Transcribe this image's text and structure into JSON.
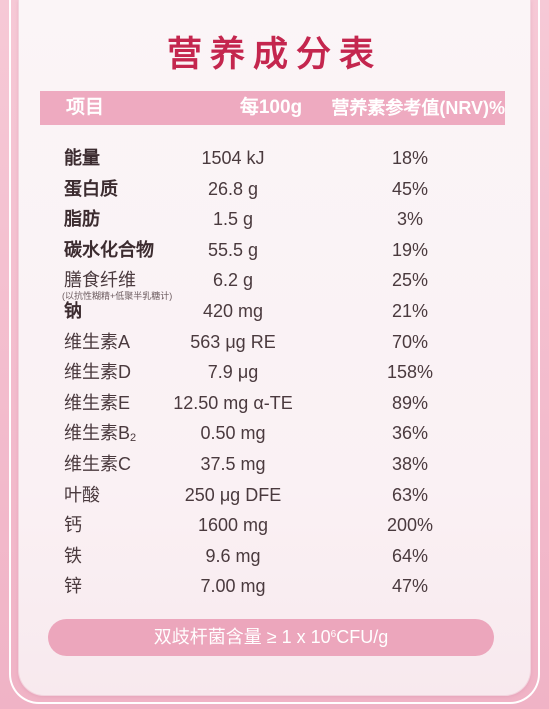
{
  "title": "营养成分表",
  "header": {
    "item": "项目",
    "per": "每100g",
    "nrv": "营养素参考值(NRV)%"
  },
  "rows": [
    {
      "name": "能量",
      "per": "1504 kJ",
      "nrv": "18%",
      "bold": true
    },
    {
      "name": "蛋白质",
      "per": "26.8 g",
      "nrv": "45%",
      "bold": true
    },
    {
      "name": "脂肪",
      "per": "1.5 g",
      "nrv": "3%",
      "bold": true
    },
    {
      "name": "碳水化合物",
      "per": "55.5 g",
      "nrv": "19%",
      "bold": true
    },
    {
      "name": "膳食纤维",
      "note": "(以抗性糊精+低聚半乳糖计)",
      "per": "6.2 g",
      "nrv": "25%",
      "bold": false
    },
    {
      "name": "钠",
      "per": "420 mg",
      "nrv": "21%",
      "bold": true
    },
    {
      "name": "维生素A",
      "per": "563 μg RE",
      "nrv": "70%",
      "bold": false
    },
    {
      "name": "维生素D",
      "per": "7.9 μg",
      "nrv": "158%",
      "bold": false
    },
    {
      "name": "维生素E",
      "per": "12.50 mg α-TE",
      "nrv": "89%",
      "bold": false
    },
    {
      "name": "维生素B",
      "name_sub": "2",
      "per": "0.50 mg",
      "nrv": "36%",
      "bold": false
    },
    {
      "name": "维生素C",
      "per": "37.5 mg",
      "nrv": "38%",
      "bold": false
    },
    {
      "name": "叶酸",
      "per": "250 μg DFE",
      "nrv": "63%",
      "bold": false
    },
    {
      "name": "钙",
      "per": "1600 mg",
      "nrv": "200%",
      "bold": false
    },
    {
      "name": "铁",
      "per": "9.6 mg",
      "nrv": "64%",
      "bold": false
    },
    {
      "name": "锌",
      "per": "7.00 mg",
      "nrv": "47%",
      "bold": false
    }
  ],
  "footer": {
    "text_before": "双歧杆菌含量 ≥ 1 x 10",
    "superscript": "6",
    "text_after": "CFU/g"
  },
  "colors": {
    "title": "#c4264e",
    "header_bg": "#eeaac0",
    "footer_bg": "#eca6bc",
    "page_bg": "#f6c9d6",
    "card_bg": "#faf1f4"
  }
}
